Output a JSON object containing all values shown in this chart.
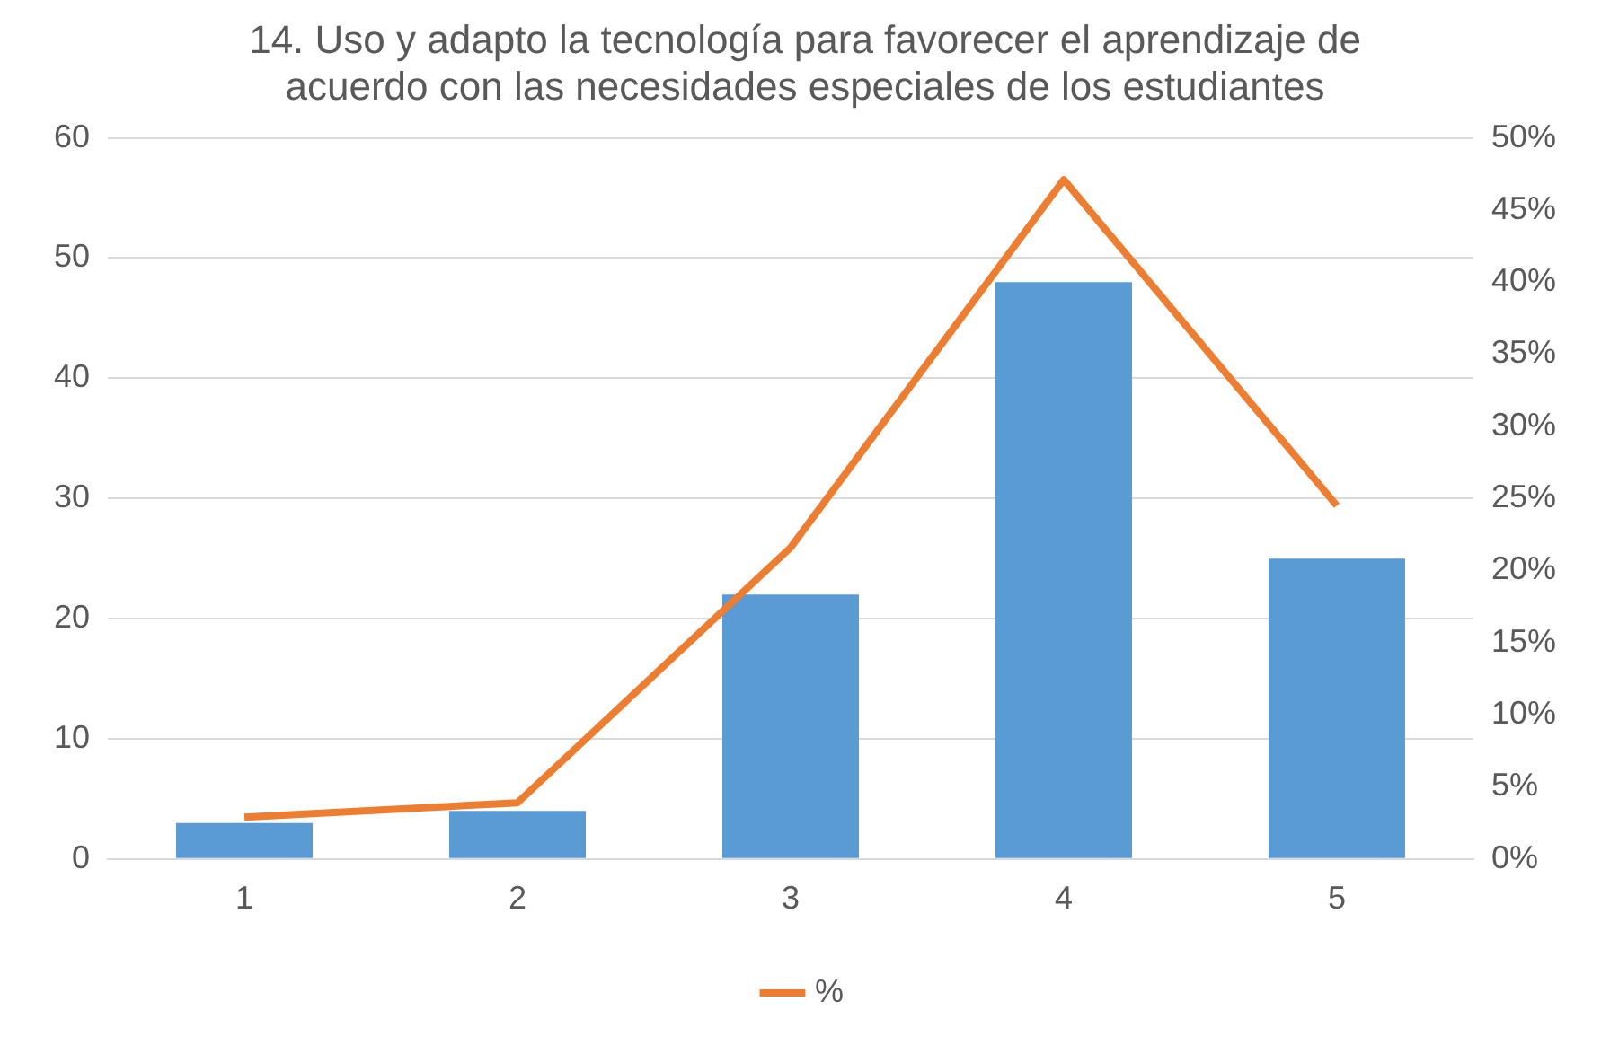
{
  "chart_data": {
    "type": "bar",
    "title": "14. Uso y adapto la tecnología para favorecer el aprendizaje de acuerdo con las necesidades especiales de los estudiantes",
    "categories": [
      "1",
      "2",
      "3",
      "4",
      "5"
    ],
    "series": [
      {
        "color": "#5b9bd5",
        "values": [
          3,
          4,
          22,
          48,
          25
        ]
      },
      {
        "type": "line",
        "name": "%",
        "color": "#ed7d31",
        "axis": "y2",
        "values": [
          2.9,
          3.9,
          21.6,
          47.1,
          24.5
        ]
      }
    ],
    "ylim": [
      0,
      60
    ],
    "yticks": [
      0,
      10,
      20,
      30,
      40,
      50,
      60
    ],
    "y2lim": [
      0,
      50
    ],
    "y2ticks": [
      {
        "value": 0,
        "label": "0%"
      },
      {
        "value": 5,
        "label": "5%"
      },
      {
        "value": 10,
        "label": "10%"
      },
      {
        "value": 15,
        "label": "15%"
      },
      {
        "value": 20,
        "label": "20%"
      },
      {
        "value": 25,
        "label": "25%"
      },
      {
        "value": 30,
        "label": "30%"
      },
      {
        "value": 35,
        "label": "35%"
      },
      {
        "value": 40,
        "label": "40%"
      },
      {
        "value": 45,
        "label": "45%"
      },
      {
        "value": 50,
        "label": "50%"
      }
    ],
    "grid": "y",
    "legend": "bottom",
    "marker": "none"
  }
}
